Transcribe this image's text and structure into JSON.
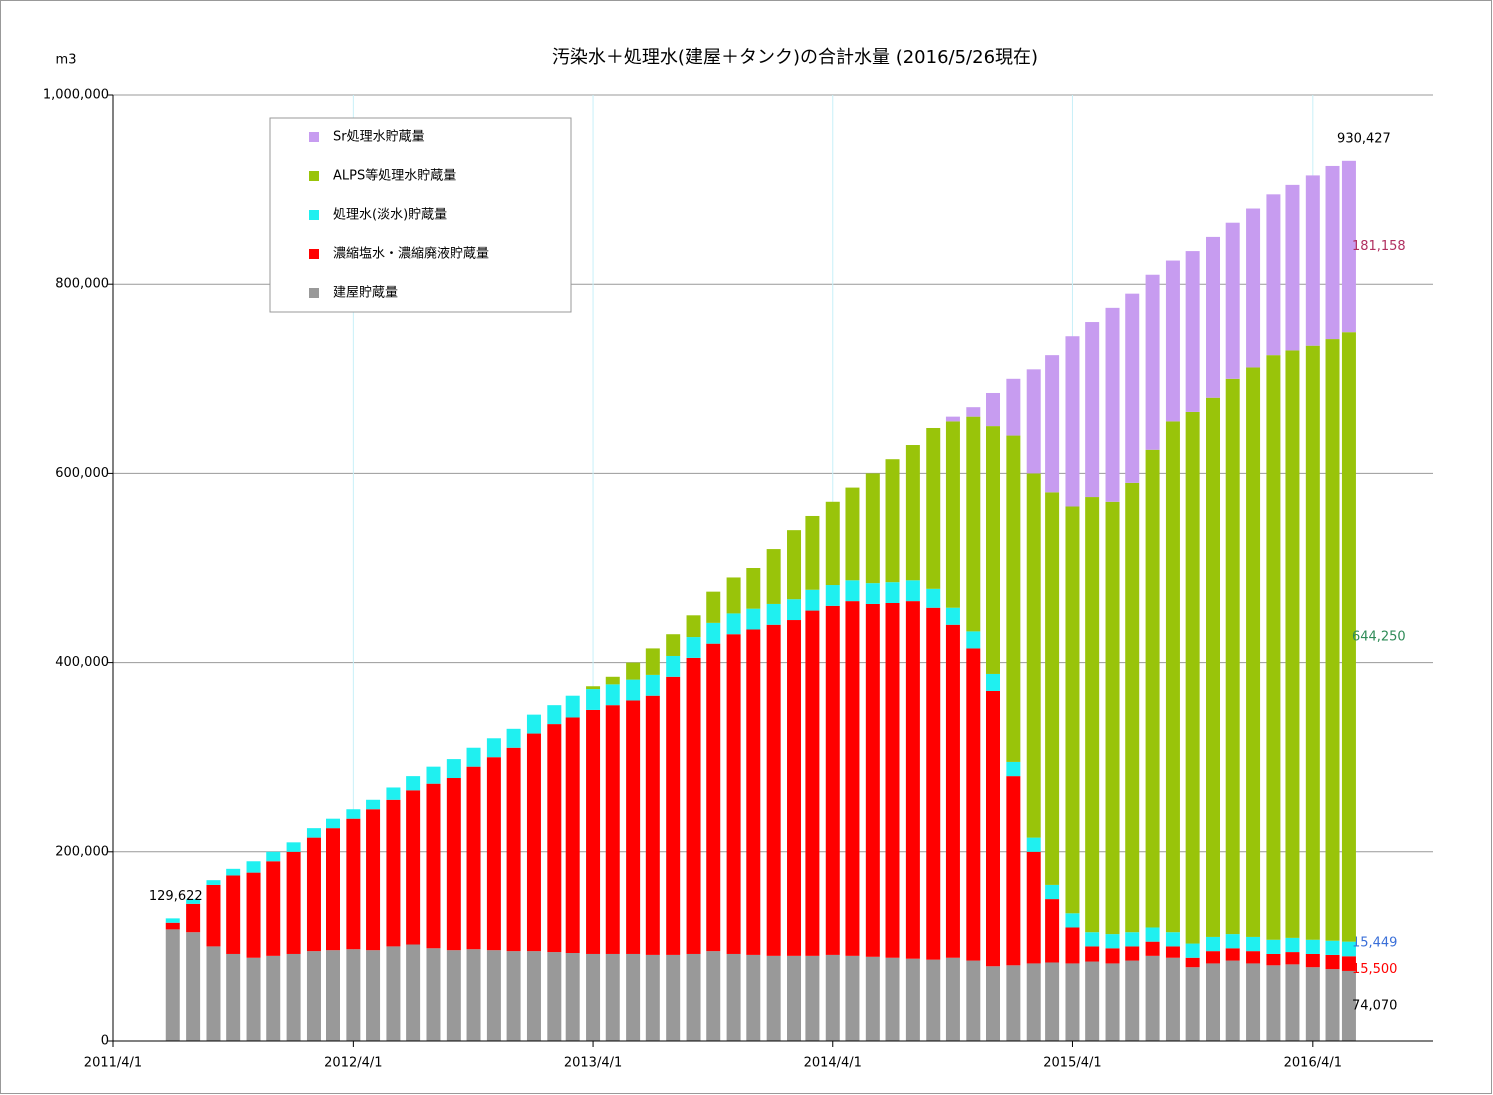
{
  "chart_data": {
    "type": "stacked-bar",
    "title": "汚染水＋処理水(建屋＋タンク)の合計水量 (2016/5/26現在)",
    "y_unit": "m3",
    "x": [
      "2011/7/1",
      "2011/8/1",
      "2011/9/1",
      "2011/10/1",
      "2011/11/1",
      "2011/12/1",
      "2012/1/1",
      "2012/2/1",
      "2012/3/1",
      "2012/4/1",
      "2012/5/1",
      "2012/6/1",
      "2012/7/1",
      "2012/8/1",
      "2012/9/1",
      "2012/10/1",
      "2012/11/1",
      "2012/12/1",
      "2013/1/1",
      "2013/2/1",
      "2013/3/1",
      "2013/4/1",
      "2013/5/1",
      "2013/6/1",
      "2013/7/1",
      "2013/8/1",
      "2013/9/1",
      "2013/10/1",
      "2013/11/1",
      "2013/12/1",
      "2014/1/1",
      "2014/2/1",
      "2014/3/1",
      "2014/4/1",
      "2014/5/1",
      "2014/6/1",
      "2014/7/1",
      "2014/8/1",
      "2014/9/1",
      "2014/10/1",
      "2014/11/1",
      "2014/12/1",
      "2015/1/1",
      "2015/2/1",
      "2015/3/1",
      "2015/4/1",
      "2015/5/1",
      "2015/6/1",
      "2015/7/1",
      "2015/8/1",
      "2015/9/1",
      "2015/10/1",
      "2015/11/1",
      "2015/12/1",
      "2016/1/1",
      "2016/2/1",
      "2016/3/1",
      "2016/4/1",
      "2016/5/1",
      "2016/5/26"
    ],
    "series": [
      {
        "name": "Sr処理水貯蔵量",
        "color": "#c79cf0",
        "label_color": "#b03060",
        "values": [
          null,
          null,
          null,
          null,
          null,
          null,
          null,
          null,
          null,
          null,
          null,
          null,
          null,
          null,
          null,
          null,
          null,
          null,
          null,
          null,
          null,
          null,
          null,
          null,
          null,
          null,
          null,
          null,
          null,
          null,
          null,
          null,
          null,
          null,
          null,
          null,
          null,
          null,
          null,
          5000,
          10000,
          35000,
          60000,
          110000,
          145000,
          180000,
          185000,
          205000,
          200000,
          185000,
          170000,
          170000,
          170000,
          165000,
          168000,
          170000,
          175000,
          180000,
          183000,
          181158
        ],
        "value_labels": [
          null,
          null,
          null,
          null,
          null,
          null,
          null,
          null,
          null,
          null,
          null,
          null,
          null,
          null,
          null,
          null,
          null,
          null,
          null,
          null,
          null,
          null,
          null,
          null,
          null,
          null,
          null,
          null,
          null,
          null,
          null,
          null,
          null,
          null,
          null,
          null,
          null,
          null,
          null,
          null,
          null,
          null,
          null,
          null,
          null,
          null,
          null,
          null,
          null,
          null,
          null,
          null,
          null,
          null,
          null,
          null,
          null,
          null,
          null,
          "181,158"
        ]
      },
      {
        "name": "ALPS等処理水貯蔵量",
        "color": "#99c40a",
        "label_color": "#2e8b57",
        "values": [
          null,
          null,
          null,
          null,
          null,
          null,
          null,
          null,
          null,
          null,
          null,
          null,
          null,
          null,
          null,
          null,
          null,
          null,
          null,
          null,
          null,
          3000,
          8000,
          18000,
          28000,
          23000,
          23000,
          33000,
          38000,
          43000,
          58000,
          73000,
          78000,
          88000,
          98000,
          116000,
          130000,
          143000,
          170000,
          197000,
          227000,
          262000,
          345000,
          385000,
          415000,
          430000,
          460000,
          457000,
          475000,
          505000,
          540000,
          562000,
          570000,
          587000,
          602000,
          618000,
          621000,
          628000,
          636000,
          644250
        ],
        "value_labels": [
          null,
          null,
          null,
          null,
          null,
          null,
          null,
          null,
          null,
          null,
          null,
          null,
          null,
          null,
          null,
          null,
          null,
          null,
          null,
          null,
          null,
          null,
          null,
          null,
          null,
          null,
          null,
          null,
          null,
          null,
          null,
          null,
          null,
          null,
          null,
          null,
          null,
          null,
          null,
          null,
          null,
          null,
          null,
          null,
          null,
          null,
          null,
          null,
          null,
          null,
          null,
          null,
          null,
          null,
          null,
          null,
          null,
          null,
          null,
          "644,250"
        ]
      },
      {
        "name": "処理水(淡水)貯蔵量",
        "color": "#1ff0f0",
        "label_color": "#3a6fd8",
        "values": [
          4622,
          5000,
          5000,
          7000,
          12000,
          10000,
          10000,
          10000,
          10000,
          10000,
          10000,
          13000,
          15000,
          18000,
          20000,
          20000,
          20000,
          20000,
          20000,
          20000,
          23000,
          22000,
          22000,
          22000,
          22000,
          22000,
          22000,
          22000,
          22000,
          22000,
          22000,
          22000,
          22000,
          22000,
          22000,
          22000,
          22000,
          22000,
          20000,
          18000,
          18000,
          18000,
          15000,
          15000,
          15000,
          15000,
          15000,
          15000,
          15000,
          15000,
          15000,
          15000,
          15000,
          15000,
          15000,
          15000,
          15000,
          15000,
          15000,
          15449
        ],
        "value_labels": [
          null,
          null,
          null,
          null,
          null,
          null,
          null,
          null,
          null,
          null,
          null,
          null,
          null,
          null,
          null,
          null,
          null,
          null,
          null,
          null,
          null,
          null,
          null,
          null,
          null,
          null,
          null,
          null,
          null,
          null,
          null,
          null,
          null,
          null,
          null,
          null,
          null,
          null,
          null,
          null,
          null,
          null,
          null,
          null,
          null,
          null,
          null,
          null,
          null,
          null,
          null,
          null,
          null,
          null,
          null,
          null,
          null,
          null,
          null,
          "15,449"
        ]
      },
      {
        "name": "濃縮塩水・濃縮廃液貯蔵量",
        "color": "#ff0000",
        "label_color": "#ff0000",
        "values": [
          7000,
          30000,
          65000,
          83000,
          90000,
          100000,
          108000,
          120000,
          129000,
          138000,
          149000,
          155000,
          163000,
          174000,
          182000,
          193000,
          204000,
          215000,
          230000,
          241000,
          249000,
          258000,
          263000,
          268000,
          274000,
          294000,
          313000,
          325000,
          338000,
          344000,
          350000,
          355000,
          365000,
          369000,
          375000,
          373000,
          375000,
          378000,
          372000,
          352000,
          330000,
          291000,
          200000,
          118000,
          67000,
          38000,
          16000,
          16000,
          15000,
          15000,
          12000,
          10000,
          13000,
          13000,
          13000,
          12000,
          13000,
          14000,
          15000,
          15500
        ],
        "value_labels": [
          null,
          null,
          null,
          null,
          null,
          null,
          null,
          null,
          null,
          null,
          null,
          null,
          null,
          null,
          null,
          null,
          null,
          null,
          null,
          null,
          null,
          null,
          null,
          null,
          null,
          null,
          null,
          null,
          null,
          null,
          null,
          null,
          null,
          null,
          null,
          null,
          null,
          null,
          null,
          null,
          null,
          null,
          null,
          null,
          null,
          null,
          null,
          null,
          null,
          null,
          null,
          null,
          null,
          null,
          null,
          null,
          null,
          null,
          null,
          "15,500"
        ]
      },
      {
        "name": "建屋貯蔵量",
        "color": "#999999",
        "label_color": "#000000",
        "values": [
          118000,
          115000,
          100000,
          92000,
          88000,
          90000,
          92000,
          95000,
          96000,
          97000,
          96000,
          100000,
          102000,
          98000,
          96000,
          97000,
          96000,
          95000,
          95000,
          94000,
          93000,
          92000,
          92000,
          92000,
          91000,
          91000,
          92000,
          95000,
          92000,
          91000,
          90000,
          90000,
          90000,
          91000,
          90000,
          89000,
          88000,
          87000,
          86000,
          88000,
          85000,
          79000,
          80000,
          82000,
          83000,
          82000,
          84000,
          82000,
          85000,
          90000,
          88000,
          78000,
          82000,
          85000,
          82000,
          80000,
          81000,
          78000,
          76000,
          74070
        ],
        "value_labels": [
          null,
          null,
          null,
          null,
          null,
          null,
          null,
          null,
          null,
          null,
          null,
          null,
          null,
          null,
          null,
          null,
          null,
          null,
          null,
          null,
          null,
          null,
          null,
          null,
          null,
          null,
          null,
          null,
          null,
          null,
          null,
          null,
          null,
          null,
          null,
          null,
          null,
          null,
          null,
          null,
          null,
          null,
          null,
          null,
          null,
          null,
          null,
          null,
          null,
          null,
          null,
          null,
          null,
          null,
          null,
          null,
          null,
          null,
          null,
          "74,070"
        ]
      }
    ],
    "total_labels": [
      {
        "x": "2011/7/1",
        "value": 129622,
        "label": "129,622"
      },
      {
        "x": "2016/5/26",
        "value": 930427,
        "label": "930,427"
      }
    ],
    "xlim": [
      "2011/4/1",
      "2016/10/1"
    ],
    "xticks": [
      "2011/4/1",
      "2012/4/1",
      "2013/4/1",
      "2014/4/1",
      "2015/4/1",
      "2016/4/1"
    ],
    "ylim": [
      0,
      1000000
    ],
    "yticks": [
      0,
      {
        "value": 200000,
        "label": "200,000"
      },
      {
        "value": 400000,
        "label": "400,000"
      },
      {
        "value": 600000,
        "label": "600,000"
      },
      {
        "value": 800000,
        "label": "800,000"
      },
      {
        "value": 1000000,
        "label": "1,000,000"
      }
    ],
    "grid": true,
    "legend": "upper-left"
  }
}
